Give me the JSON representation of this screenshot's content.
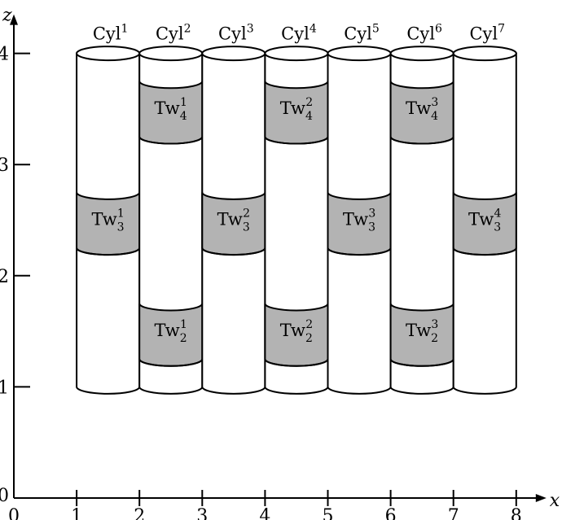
{
  "axes": {
    "x_label": "x",
    "z_label": "z",
    "x_ticks": [
      "0",
      "1",
      "2",
      "3",
      "4",
      "5",
      "6",
      "7",
      "8"
    ],
    "z_ticks": [
      "0",
      "1",
      "2",
      "3",
      "4"
    ]
  },
  "cylinders": [
    {
      "base": "Cyl",
      "sup": "1",
      "x_from": 1,
      "x_to": 2,
      "z_from": 1,
      "z_to": 4
    },
    {
      "base": "Cyl",
      "sup": "2",
      "x_from": 2,
      "x_to": 3,
      "z_from": 1,
      "z_to": 4
    },
    {
      "base": "Cyl",
      "sup": "3",
      "x_from": 3,
      "x_to": 4,
      "z_from": 1,
      "z_to": 4
    },
    {
      "base": "Cyl",
      "sup": "4",
      "x_from": 4,
      "x_to": 5,
      "z_from": 1,
      "z_to": 4
    },
    {
      "base": "Cyl",
      "sup": "5",
      "x_from": 5,
      "x_to": 6,
      "z_from": 1,
      "z_to": 4
    },
    {
      "base": "Cyl",
      "sup": "6",
      "x_from": 6,
      "x_to": 7,
      "z_from": 1,
      "z_to": 4
    },
    {
      "base": "Cyl",
      "sup": "7",
      "x_from": 7,
      "x_to": 8,
      "z_from": 1,
      "z_to": 4
    }
  ],
  "bands": [
    {
      "cylinder": 2,
      "z_from": 3.25,
      "z_to": 3.75,
      "base": "Tw",
      "sup": "1",
      "sub": "4"
    },
    {
      "cylinder": 4,
      "z_from": 3.25,
      "z_to": 3.75,
      "base": "Tw",
      "sup": "2",
      "sub": "4"
    },
    {
      "cylinder": 6,
      "z_from": 3.25,
      "z_to": 3.75,
      "base": "Tw",
      "sup": "3",
      "sub": "4"
    },
    {
      "cylinder": 1,
      "z_from": 2.25,
      "z_to": 2.75,
      "base": "Tw",
      "sup": "1",
      "sub": "3"
    },
    {
      "cylinder": 3,
      "z_from": 2.25,
      "z_to": 2.75,
      "base": "Tw",
      "sup": "2",
      "sub": "3"
    },
    {
      "cylinder": 5,
      "z_from": 2.25,
      "z_to": 2.75,
      "base": "Tw",
      "sup": "3",
      "sub": "3"
    },
    {
      "cylinder": 7,
      "z_from": 2.25,
      "z_to": 2.75,
      "base": "Tw",
      "sup": "4",
      "sub": "3"
    },
    {
      "cylinder": 2,
      "z_from": 1.25,
      "z_to": 1.75,
      "base": "Tw",
      "sup": "1",
      "sub": "2"
    },
    {
      "cylinder": 4,
      "z_from": 1.25,
      "z_to": 1.75,
      "base": "Tw",
      "sup": "2",
      "sub": "2"
    },
    {
      "cylinder": 6,
      "z_from": 1.25,
      "z_to": 1.75,
      "base": "Tw",
      "sup": "3",
      "sub": "2"
    }
  ],
  "colors": {
    "band_fill": "#b3b3b3",
    "cylinder_fill": "#ffffff",
    "stroke": "#000000"
  }
}
